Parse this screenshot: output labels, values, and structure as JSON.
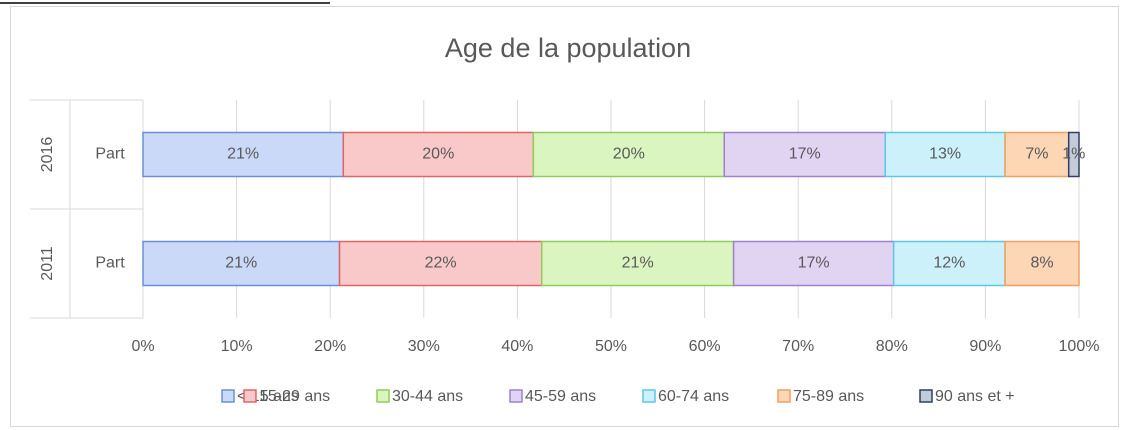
{
  "chart_data": {
    "type": "bar",
    "orientation": "horizontal",
    "stacked": "percent",
    "title": "Age de la population",
    "groups": [
      "2016",
      "2011"
    ],
    "categories": [
      "Part",
      "Part"
    ],
    "xlim": [
      0,
      100
    ],
    "xticks": [
      {
        "value": 0,
        "label": "0%"
      },
      {
        "value": 10,
        "label": "10%"
      },
      {
        "value": 20,
        "label": "20%"
      },
      {
        "value": 30,
        "label": "30%"
      },
      {
        "value": 40,
        "label": "40%"
      },
      {
        "value": 50,
        "label": "50%"
      },
      {
        "value": 60,
        "label": "60%"
      },
      {
        "value": 70,
        "label": "70%"
      },
      {
        "value": 80,
        "label": "80%"
      },
      {
        "value": 90,
        "label": "90%"
      },
      {
        "value": 100,
        "label": "100%"
      }
    ],
    "grid": true,
    "legend": "bottom",
    "series": [
      {
        "name": "< 15 ans",
        "color": "#c9d9f7",
        "edge": "#6a8fd8",
        "values": [
          21.4,
          21.0
        ],
        "value_labels": [
          "21%",
          "21%"
        ]
      },
      {
        "name": "15-29 ans",
        "color": "#f9c9c9",
        "edge": "#e06666",
        "values": [
          20.3,
          21.6
        ],
        "value_labels": [
          "20%",
          "22%"
        ]
      },
      {
        "name": "30-44 ans",
        "color": "#daf5bf",
        "edge": "#8fce5a",
        "values": [
          20.4,
          20.5
        ],
        "value_labels": [
          "20%",
          "21%"
        ]
      },
      {
        "name": "45-59 ans",
        "color": "#e0d4f2",
        "edge": "#a080cc",
        "values": [
          17.2,
          17.1
        ],
        "value_labels": [
          "17%",
          "17%"
        ]
      },
      {
        "name": "60-74 ans",
        "color": "#ccf1fb",
        "edge": "#5bc8e8",
        "values": [
          12.8,
          11.9
        ],
        "value_labels": [
          "13%",
          "12%"
        ]
      },
      {
        "name": "75-89 ans",
        "color": "#fcd6b5",
        "edge": "#f0a060",
        "values": [
          6.8,
          7.9
        ],
        "value_labels": [
          "7%",
          "8%"
        ]
      },
      {
        "name": "90 ans et +",
        "color": "#c3cbdb",
        "edge": "#2f4060",
        "values": [
          1.1,
          null
        ],
        "value_labels": [
          "1%",
          null
        ]
      }
    ]
  }
}
